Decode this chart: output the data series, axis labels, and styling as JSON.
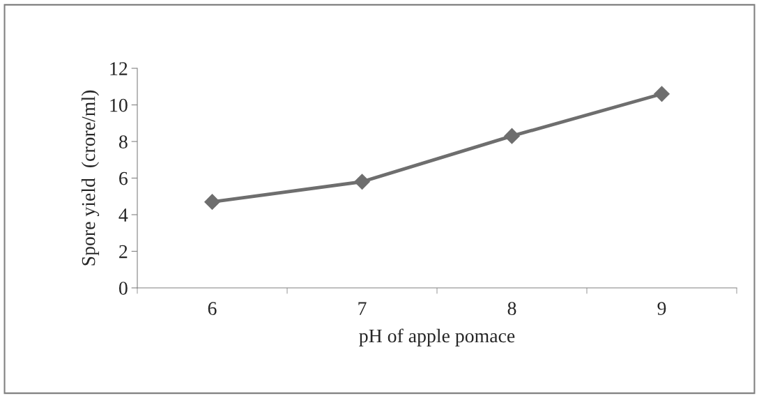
{
  "chart_data": {
    "type": "line",
    "xlabel": "pH of apple pomace",
    "ylabel": "Spore yield  (crore/ml)",
    "categories": [
      "6",
      "7",
      "8",
      "9"
    ],
    "series": [
      {
        "color": "#6e6e6e",
        "values": [
          4.7,
          5.8,
          8.3,
          10.6
        ]
      }
    ],
    "ylim": [
      0,
      12
    ],
    "yticks": [
      0,
      2,
      4,
      6,
      8,
      10,
      12
    ],
    "marker": "diamond",
    "line_style": "solid",
    "grid": false,
    "legend": false
  }
}
